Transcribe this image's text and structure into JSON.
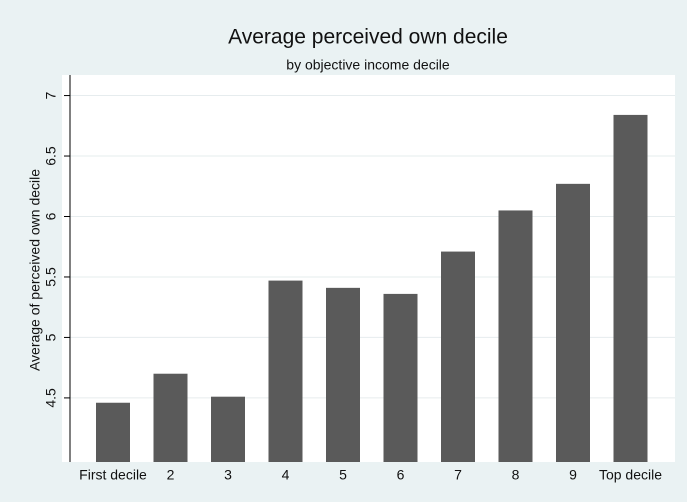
{
  "chart_data": {
    "type": "bar",
    "title": "Average perceived own decile",
    "subtitle": "by objective income decile",
    "y_label": "Average of perceived own decile",
    "categories": [
      "First decile",
      "2",
      "3",
      "4",
      "5",
      "6",
      "7",
      "8",
      "9",
      "Top decile"
    ],
    "values": [
      4.46,
      4.7,
      4.51,
      5.47,
      5.41,
      5.36,
      5.71,
      6.05,
      6.27,
      6.84
    ],
    "color": "#5a5a5a",
    "ylim": [
      3.97,
      7.17
    ],
    "yticks": [
      4.5,
      5,
      5.5,
      6,
      6.5,
      7
    ],
    "grid": true
  }
}
